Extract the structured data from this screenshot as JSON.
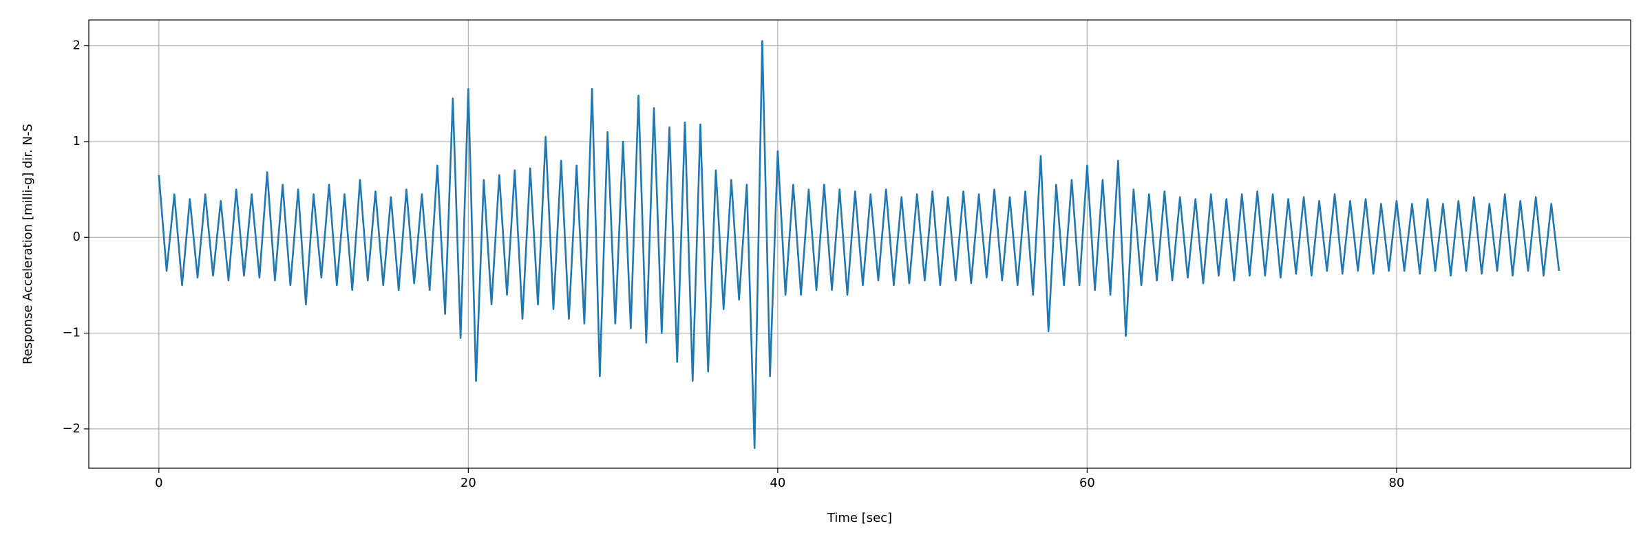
{
  "chart_data": {
    "type": "line",
    "xlabel": "Time [sec]",
    "ylabel": "Response Acceleration [milli-g] dir. N-S",
    "x": [
      0,
      0.5,
      1,
      1.5,
      2,
      2.5,
      3,
      3.5,
      4,
      4.5,
      5,
      5.5,
      6,
      6.5,
      7,
      7.5,
      8,
      8.5,
      9,
      9.5,
      10,
      10.5,
      11,
      11.5,
      12,
      12.5,
      13,
      13.5,
      14,
      14.5,
      15,
      15.5,
      16,
      16.5,
      17,
      17.5,
      18,
      18.5,
      19,
      19.5,
      20,
      20.5,
      21,
      21.5,
      22,
      22.5,
      23,
      23.5,
      24,
      24.5,
      25,
      25.5,
      26,
      26.5,
      27,
      27.5,
      28,
      28.5,
      29,
      29.5,
      30,
      30.5,
      31,
      31.5,
      32,
      32.5,
      33,
      33.5,
      34,
      34.5,
      35,
      35.5,
      36,
      36.5,
      37,
      37.5,
      38,
      38.5,
      39,
      39.5,
      40,
      40.5,
      41,
      41.5,
      42,
      42.5,
      43,
      43.5,
      44,
      44.5,
      45,
      45.5,
      46,
      46.5,
      47,
      47.5,
      48,
      48.5,
      49,
      49.5,
      50,
      50.5,
      51,
      51.5,
      52,
      52.5,
      53,
      53.5,
      54,
      54.5,
      55,
      55.5,
      56,
      56.5,
      57,
      57.5,
      58,
      58.5,
      59,
      59.5,
      60,
      60.5,
      61,
      61.5,
      62,
      62.5,
      63,
      63.5,
      64,
      64.5,
      65,
      65.5,
      66,
      66.5,
      67,
      67.5,
      68,
      68.5,
      69,
      69.5,
      70,
      70.5,
      71,
      71.5,
      72,
      72.5,
      73,
      73.5,
      74,
      74.5,
      75,
      75.5,
      76,
      76.5,
      77,
      77.5,
      78,
      78.5,
      79,
      79.5,
      80,
      80.5,
      81,
      81.5,
      82,
      82.5,
      83,
      83.5,
      84,
      84.5,
      85,
      85.5,
      86,
      86.5,
      87,
      87.5,
      88,
      88.5,
      89,
      89.5,
      90,
      90.5
    ],
    "series": [
      {
        "color": "#1f77b4",
        "values": [
          0.65,
          -0.35,
          0.45,
          -0.5,
          0.4,
          -0.42,
          0.45,
          -0.4,
          0.38,
          -0.45,
          0.5,
          -0.4,
          0.45,
          -0.42,
          0.68,
          -0.45,
          0.55,
          -0.5,
          0.5,
          -0.7,
          0.45,
          -0.42,
          0.55,
          -0.5,
          0.45,
          -0.55,
          0.6,
          -0.45,
          0.48,
          -0.5,
          0.42,
          -0.55,
          0.5,
          -0.48,
          0.45,
          -0.55,
          0.75,
          -0.8,
          1.45,
          -1.05,
          1.55,
          -1.5,
          0.6,
          -0.7,
          0.65,
          -0.6,
          0.7,
          -0.85,
          0.72,
          -0.7,
          1.05,
          -0.75,
          0.8,
          -0.85,
          0.75,
          -0.9,
          1.55,
          -1.45,
          1.1,
          -0.9,
          1.0,
          -0.95,
          1.48,
          -1.1,
          1.35,
          -1.0,
          1.15,
          -1.3,
          1.2,
          -1.5,
          1.18,
          -1.4,
          0.7,
          -0.75,
          0.6,
          -0.65,
          0.55,
          -2.2,
          2.05,
          -1.45,
          0.9,
          -0.6,
          0.55,
          -0.6,
          0.5,
          -0.55,
          0.55,
          -0.55,
          0.5,
          -0.6,
          0.48,
          -0.5,
          0.45,
          -0.45,
          0.5,
          -0.5,
          0.42,
          -0.48,
          0.45,
          -0.45,
          0.48,
          -0.5,
          0.42,
          -0.45,
          0.48,
          -0.48,
          0.45,
          -0.42,
          0.5,
          -0.45,
          0.42,
          -0.5,
          0.48,
          -0.6,
          0.85,
          -0.98,
          0.55,
          -0.5,
          0.6,
          -0.5,
          0.75,
          -0.55,
          0.6,
          -0.6,
          0.8,
          -1.03,
          0.5,
          -0.5,
          0.45,
          -0.45,
          0.48,
          -0.45,
          0.42,
          -0.42,
          0.4,
          -0.48,
          0.45,
          -0.4,
          0.4,
          -0.45,
          0.45,
          -0.4,
          0.48,
          -0.4,
          0.45,
          -0.42,
          0.4,
          -0.38,
          0.42,
          -0.4,
          0.38,
          -0.35,
          0.45,
          -0.38,
          0.38,
          -0.35,
          0.4,
          -0.38,
          0.35,
          -0.35,
          0.38,
          -0.35,
          0.35,
          -0.38,
          0.4,
          -0.35,
          0.35,
          -0.4,
          0.38,
          -0.35,
          0.42,
          -0.38,
          0.35,
          -0.35,
          0.45,
          -0.4,
          0.38,
          -0.35,
          0.42,
          -0.4,
          0.35,
          -0.35
        ]
      }
    ],
    "xlim": [
      -4.53,
      95.13
    ],
    "xticks": [
      0,
      20,
      40,
      60,
      80
    ],
    "ylim": [
      -2.41,
      2.27
    ],
    "yticks": [
      {
        "value": -2,
        "label": "−2"
      },
      {
        "value": -1,
        "label": "−1"
      },
      0,
      1,
      2
    ],
    "grid": true
  }
}
